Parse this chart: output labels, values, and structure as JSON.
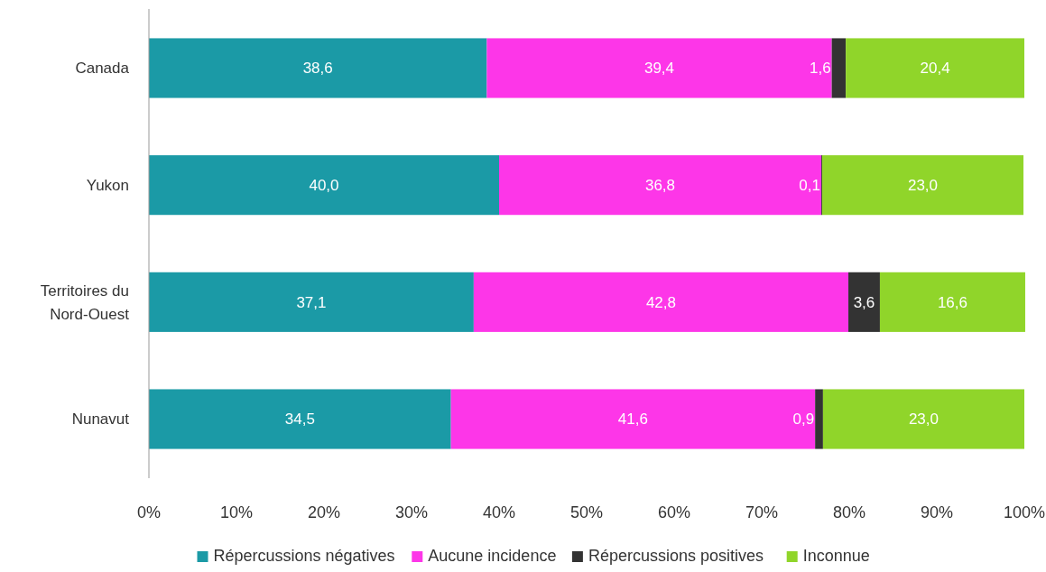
{
  "chart_data": {
    "type": "bar",
    "orientation": "horizontal",
    "stacked": true,
    "legend": "bottom",
    "grid": false,
    "categories": [
      "Canada",
      "Yukon",
      "Territoires du Nord-Ouest",
      "Nunavut"
    ],
    "xlim": [
      0,
      100
    ],
    "xticks": [
      {
        "value": 0,
        "label": "0%"
      },
      {
        "value": 10,
        "label": "10%"
      },
      {
        "value": 20,
        "label": "20%"
      },
      {
        "value": 30,
        "label": "30%"
      },
      {
        "value": 40,
        "label": "40%"
      },
      {
        "value": 50,
        "label": "50%"
      },
      {
        "value": 60,
        "label": "60%"
      },
      {
        "value": 70,
        "label": "70%"
      },
      {
        "value": 80,
        "label": "80%"
      },
      {
        "value": 90,
        "label": "90%"
      },
      {
        "value": 100,
        "label": "100%"
      }
    ],
    "series": [
      {
        "name": "Répercussions négatives",
        "color": "#1b9aa6",
        "values": [
          38.6,
          40.0,
          37.1,
          34.5
        ],
        "value_labels": [
          "38,6",
          "40,0",
          "37,1",
          "34,5"
        ]
      },
      {
        "name": "Aucune incidence",
        "color": "#fd36e8",
        "values": [
          39.4,
          36.8,
          42.8,
          41.6
        ],
        "value_labels": [
          "39,4",
          "36,8",
          "42,8",
          "41,6"
        ]
      },
      {
        "name": "Répercussions positives",
        "color": "#333333",
        "values": [
          1.6,
          0.1,
          3.6,
          0.9
        ],
        "value_labels": [
          "1,6",
          "0,1",
          "3,6",
          "0,9"
        ]
      },
      {
        "name": "Inconnue",
        "color": "#90d52a",
        "values": [
          20.4,
          23.0,
          16.6,
          23.0
        ],
        "value_labels": [
          "20,4",
          "23,0",
          "16,6",
          "23,0"
        ]
      }
    ]
  }
}
